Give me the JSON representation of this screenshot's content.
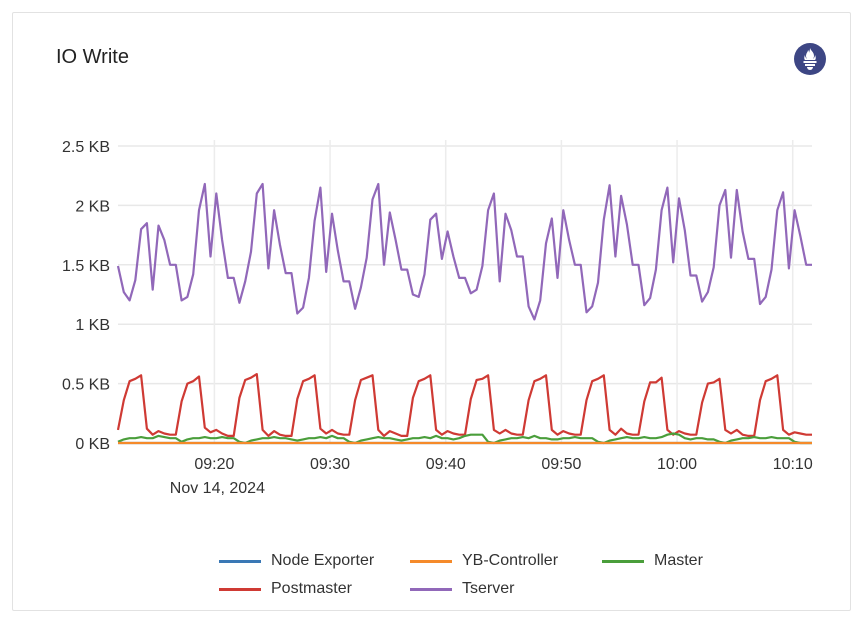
{
  "panel": {
    "title": "IO Write",
    "logo_icon": "prometheus-icon"
  },
  "chart_data": {
    "type": "line",
    "title": "IO Write",
    "x_start": "09:11:40",
    "x_end": "10:11:40",
    "step_seconds": 30,
    "x_ticks": [
      "09:20",
      "09:30",
      "09:40",
      "09:50",
      "10:00",
      "10:10"
    ],
    "x_date_label": "Nov 14, 2024",
    "y_unit": "KB",
    "ylim": [
      0,
      2.5
    ],
    "y_ticks": [
      0,
      0.5,
      1,
      1.5,
      2,
      2.5
    ],
    "y_tick_labels": [
      "0 KB",
      "0.5 KB",
      "1 KB",
      "1.5 KB",
      "2 KB",
      "2.5 KB"
    ],
    "grid": true,
    "legend_placement": "bottom",
    "series": [
      {
        "name": "Node Exporter",
        "color": "#3a78b5",
        "values": [
          0,
          0,
          0,
          0,
          0,
          0,
          0,
          0,
          0,
          0,
          0,
          0,
          0,
          0,
          0,
          0,
          0,
          0,
          0,
          0,
          0,
          0,
          0,
          0,
          0,
          0,
          0,
          0,
          0,
          0,
          0,
          0,
          0,
          0,
          0,
          0,
          0,
          0,
          0,
          0,
          0,
          0,
          0,
          0,
          0,
          0,
          0,
          0,
          0,
          0,
          0,
          0,
          0,
          0,
          0,
          0,
          0,
          0,
          0,
          0,
          0,
          0,
          0,
          0,
          0,
          0,
          0,
          0,
          0,
          0,
          0,
          0,
          0,
          0,
          0,
          0,
          0,
          0,
          0,
          0,
          0,
          0,
          0,
          0,
          0,
          0,
          0,
          0,
          0,
          0,
          0,
          0,
          0,
          0,
          0,
          0,
          0,
          0,
          0,
          0,
          0,
          0,
          0,
          0,
          0,
          0,
          0,
          0,
          0,
          0,
          0,
          0,
          0,
          0,
          0,
          0,
          0,
          0,
          0,
          0,
          0
        ]
      },
      {
        "name": "YB-Controller",
        "color": "#f58a2a",
        "values": [
          0,
          0,
          0,
          0,
          0,
          0,
          0,
          0,
          0,
          0,
          0,
          0,
          0,
          0,
          0,
          0,
          0,
          0,
          0,
          0,
          0,
          0,
          0,
          0,
          0,
          0,
          0,
          0,
          0,
          0,
          0,
          0,
          0,
          0,
          0,
          0,
          0,
          0,
          0,
          0,
          0,
          0,
          0,
          0,
          0,
          0,
          0,
          0,
          0,
          0,
          0,
          0,
          0,
          0,
          0,
          0,
          0,
          0,
          0,
          0,
          0,
          0,
          0,
          0,
          0,
          0,
          0,
          0,
          0,
          0,
          0,
          0,
          0,
          0,
          0,
          0,
          0,
          0,
          0,
          0,
          0,
          0,
          0,
          0,
          0,
          0,
          0,
          0,
          0,
          0,
          0,
          0,
          0,
          0,
          0,
          0,
          0,
          0,
          0,
          0,
          0,
          0,
          0,
          0,
          0,
          0,
          0,
          0,
          0,
          0,
          0,
          0,
          0,
          0,
          0,
          0,
          0,
          0,
          0,
          0,
          0
        ]
      },
      {
        "name": "Master",
        "color": "#4a9e3b",
        "values": [
          0.01,
          0.03,
          0.04,
          0.04,
          0.05,
          0.04,
          0.04,
          0.06,
          0.05,
          0.04,
          0.04,
          0.01,
          0.03,
          0.04,
          0.04,
          0.05,
          0.04,
          0.04,
          0.05,
          0.04,
          0.04,
          0.01,
          0.0,
          0.02,
          0.03,
          0.04,
          0.04,
          0.05,
          0.04,
          0.04,
          0.03,
          0.02,
          0.03,
          0.04,
          0.04,
          0.05,
          0.04,
          0.06,
          0.04,
          0.04,
          0.01,
          0.0,
          0.02,
          0.03,
          0.04,
          0.05,
          0.04,
          0.04,
          0.03,
          0.02,
          0.03,
          0.04,
          0.04,
          0.05,
          0.04,
          0.06,
          0.04,
          0.04,
          0.03,
          0.04,
          0.06,
          0.07,
          0.07,
          0.07,
          0.01,
          0.0,
          0.02,
          0.03,
          0.04,
          0.04,
          0.05,
          0.04,
          0.06,
          0.04,
          0.04,
          0.03,
          0.03,
          0.04,
          0.04,
          0.05,
          0.04,
          0.04,
          0.04,
          0.01,
          0.0,
          0.02,
          0.03,
          0.04,
          0.05,
          0.04,
          0.04,
          0.05,
          0.04,
          0.04,
          0.05,
          0.07,
          0.08,
          0.07,
          0.04,
          0.03,
          0.04,
          0.04,
          0.03,
          0.03,
          0.01,
          0.0,
          0.02,
          0.03,
          0.04,
          0.04,
          0.05,
          0.04,
          0.04,
          0.05,
          0.04,
          0.04,
          0.04,
          0.01,
          0.0,
          0.0,
          0.0
        ]
      },
      {
        "name": "Postmaster",
        "color": "#cf3a34",
        "values": [
          0.11,
          0.36,
          0.52,
          0.54,
          0.57,
          0.12,
          0.07,
          0.1,
          0.08,
          0.07,
          0.07,
          0.35,
          0.5,
          0.52,
          0.56,
          0.13,
          0.09,
          0.11,
          0.08,
          0.06,
          0.06,
          0.38,
          0.53,
          0.55,
          0.58,
          0.11,
          0.06,
          0.1,
          0.07,
          0.06,
          0.06,
          0.37,
          0.52,
          0.54,
          0.57,
          0.12,
          0.08,
          0.11,
          0.08,
          0.07,
          0.07,
          0.36,
          0.53,
          0.55,
          0.57,
          0.11,
          0.06,
          0.1,
          0.08,
          0.06,
          0.06,
          0.38,
          0.52,
          0.54,
          0.57,
          0.11,
          0.07,
          0.1,
          0.08,
          0.07,
          0.07,
          0.37,
          0.53,
          0.54,
          0.57,
          0.11,
          0.08,
          0.11,
          0.08,
          0.07,
          0.07,
          0.36,
          0.52,
          0.54,
          0.57,
          0.11,
          0.07,
          0.1,
          0.08,
          0.07,
          0.07,
          0.36,
          0.52,
          0.54,
          0.57,
          0.11,
          0.07,
          0.12,
          0.08,
          0.07,
          0.07,
          0.35,
          0.51,
          0.51,
          0.55,
          0.11,
          0.07,
          0.1,
          0.08,
          0.07,
          0.07,
          0.34,
          0.5,
          0.51,
          0.54,
          0.11,
          0.08,
          0.11,
          0.07,
          0.06,
          0.06,
          0.36,
          0.52,
          0.54,
          0.57,
          0.11,
          0.07,
          0.09,
          0.08,
          0.07,
          0.07
        ]
      },
      {
        "name": "Tserver",
        "color": "#9168b9",
        "values": [
          1.49,
          1.27,
          1.2,
          1.37,
          1.8,
          1.85,
          1.29,
          1.83,
          1.71,
          1.5,
          1.5,
          1.2,
          1.23,
          1.42,
          1.96,
          2.18,
          1.57,
          2.1,
          1.71,
          1.39,
          1.39,
          1.18,
          1.36,
          1.61,
          2.1,
          2.18,
          1.47,
          1.96,
          1.67,
          1.43,
          1.43,
          1.09,
          1.14,
          1.39,
          1.87,
          2.15,
          1.44,
          1.93,
          1.62,
          1.36,
          1.36,
          1.13,
          1.31,
          1.56,
          2.05,
          2.18,
          1.5,
          1.94,
          1.71,
          1.46,
          1.46,
          1.25,
          1.23,
          1.42,
          1.88,
          1.93,
          1.55,
          1.78,
          1.57,
          1.39,
          1.39,
          1.26,
          1.29,
          1.49,
          1.96,
          2.1,
          1.36,
          1.93,
          1.79,
          1.57,
          1.57,
          1.15,
          1.04,
          1.2,
          1.68,
          1.89,
          1.39,
          1.96,
          1.71,
          1.5,
          1.5,
          1.1,
          1.15,
          1.35,
          1.88,
          2.17,
          1.57,
          2.08,
          1.84,
          1.5,
          1.5,
          1.16,
          1.22,
          1.46,
          1.96,
          2.15,
          1.52,
          2.06,
          1.79,
          1.41,
          1.41,
          1.19,
          1.27,
          1.48,
          2.0,
          2.13,
          1.56,
          2.13,
          1.78,
          1.55,
          1.55,
          1.17,
          1.23,
          1.46,
          1.96,
          2.11,
          1.47,
          1.96,
          1.74,
          1.5,
          1.5
        ]
      }
    ]
  }
}
